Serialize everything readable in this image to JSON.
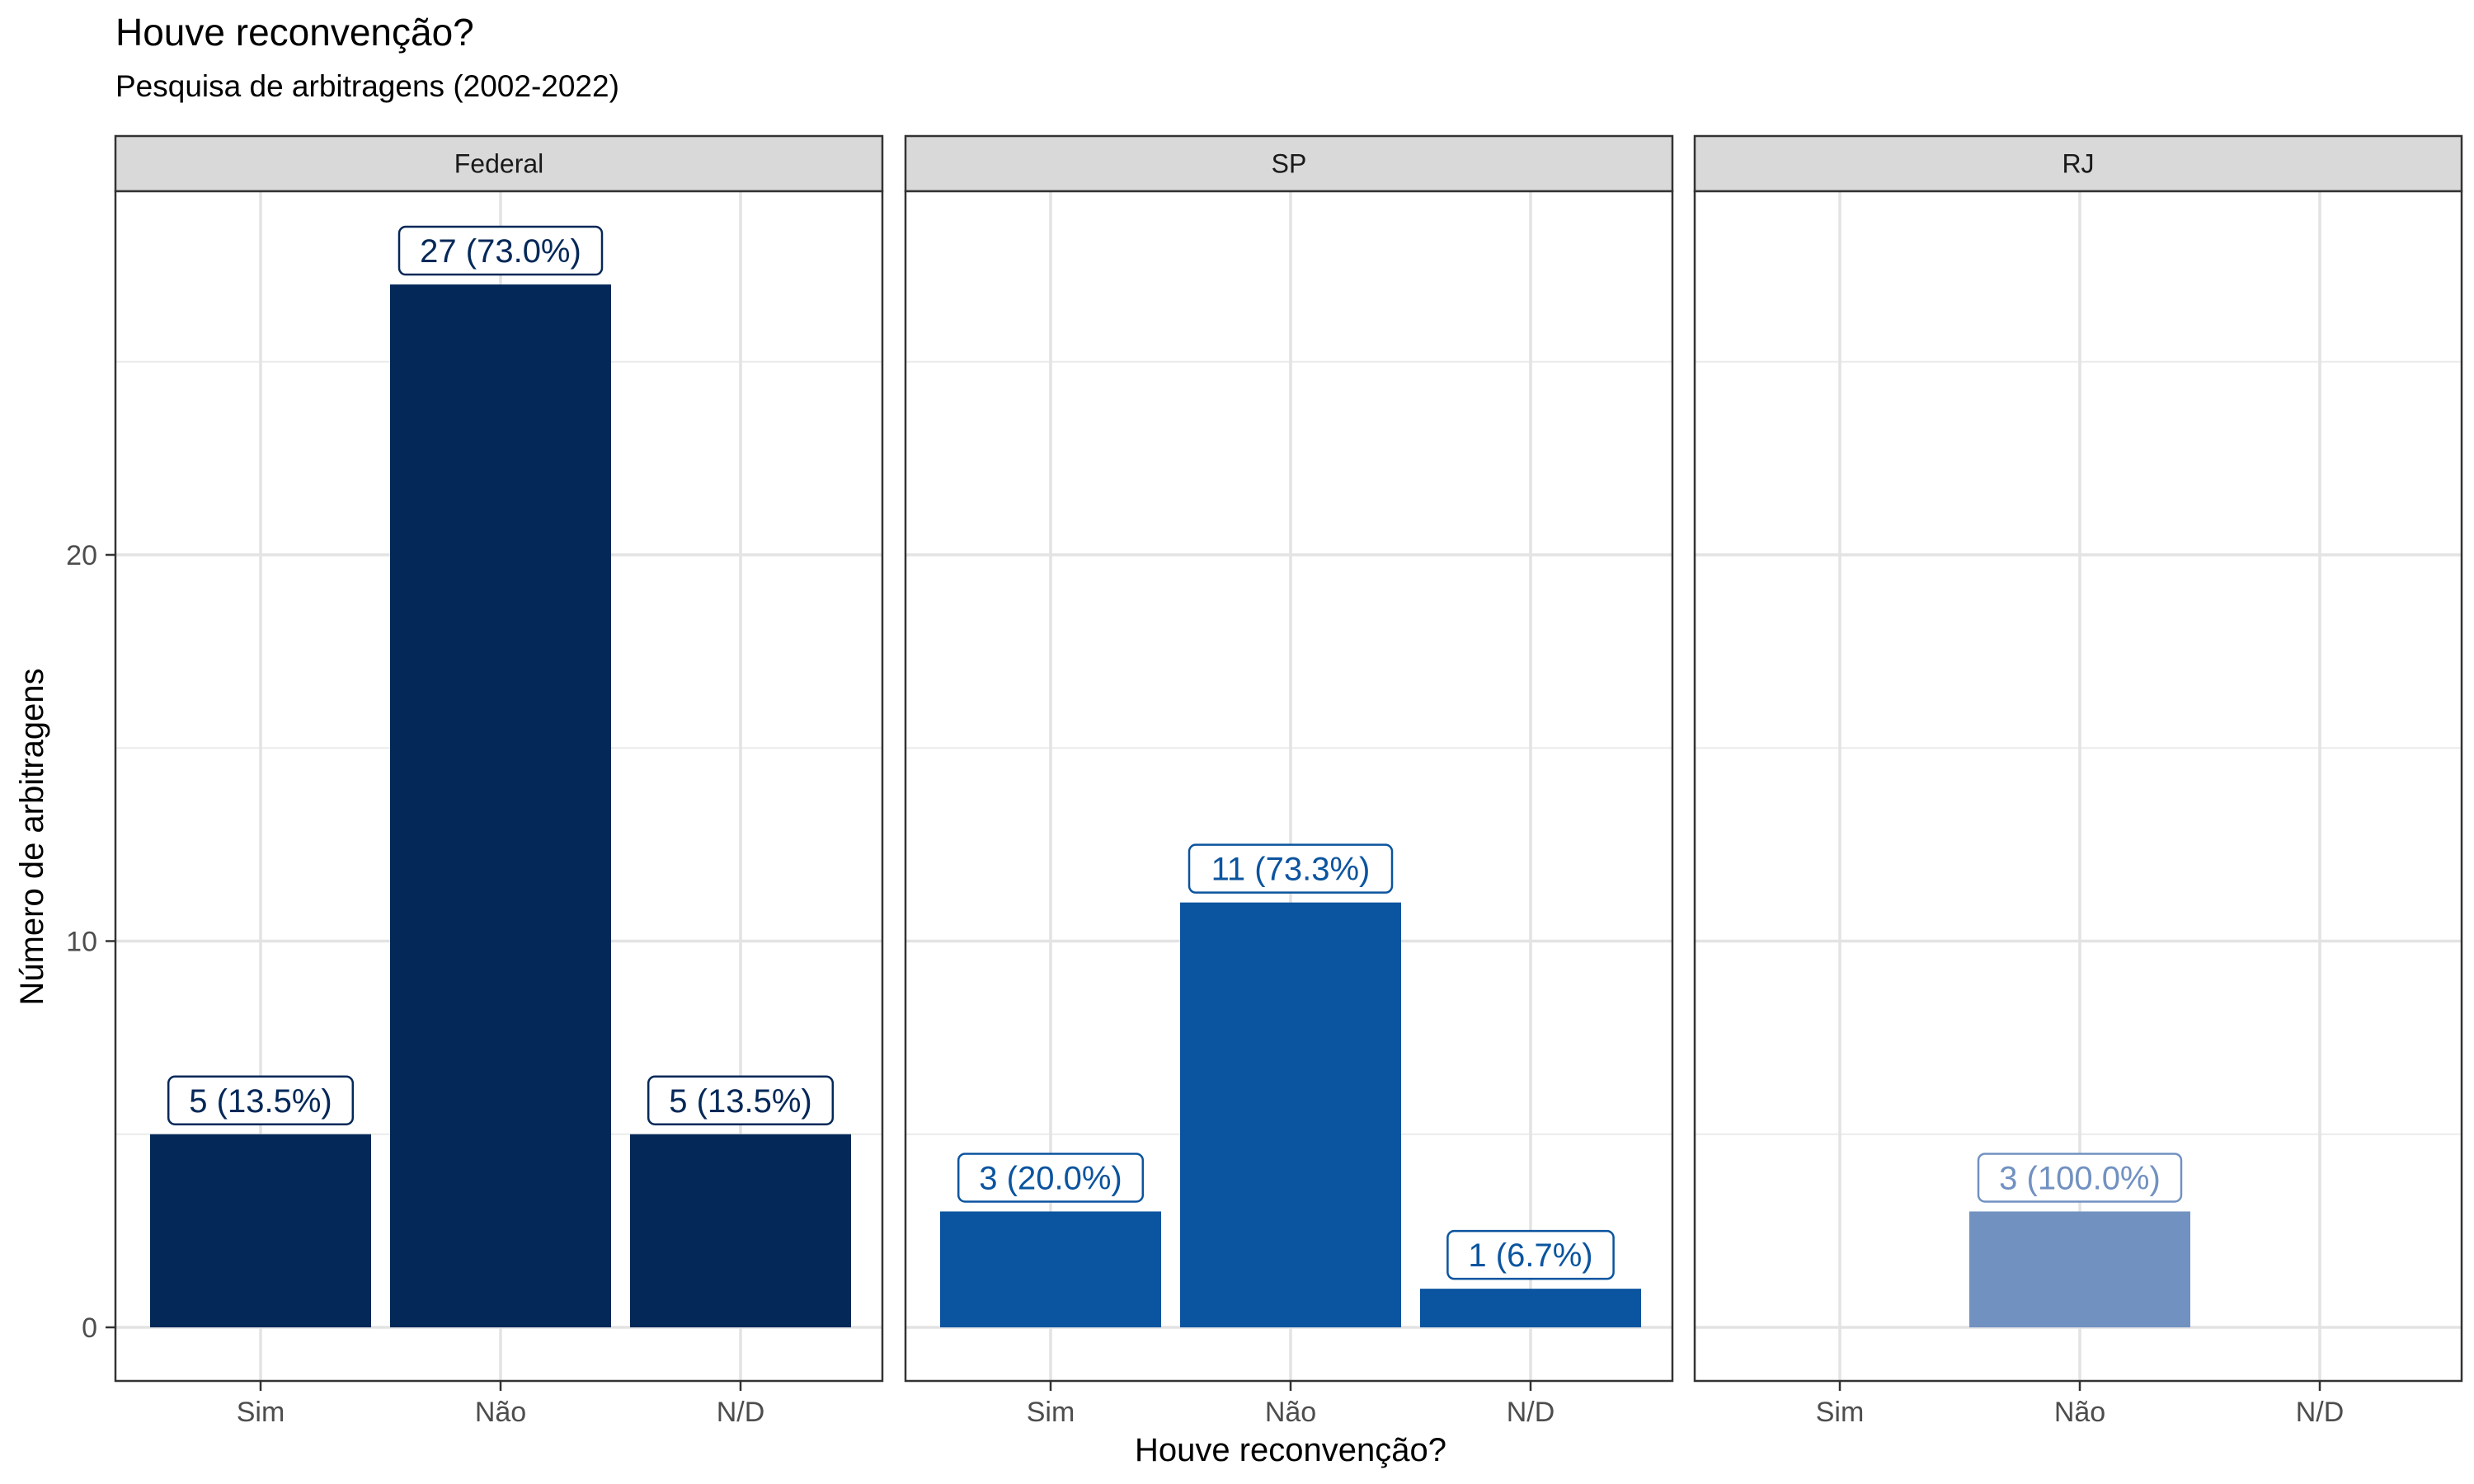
{
  "chart_data": {
    "type": "bar",
    "title": "Houve reconvenção?",
    "subtitle": "Pesquisa de arbitragens (2002-2022)",
    "xlabel": "Houve reconvenção?",
    "ylabel": "Número de arbitragens",
    "categories": [
      "Sim",
      "Não",
      "N/D"
    ],
    "ylim": [
      -1.35,
      29.0
    ],
    "yticks": [
      0,
      10,
      20
    ],
    "grid": true,
    "facets": [
      {
        "name": "Federal",
        "color": "#042858",
        "values": [
          5,
          27,
          5
        ],
        "labels": [
          "5 (13.5%)",
          "27 (73.0%)",
          "5 (13.5%)"
        ]
      },
      {
        "name": "SP",
        "color": "#0B549F",
        "values": [
          3,
          11,
          1
        ],
        "labels": [
          "3 (20.0%)",
          "11 (73.3%)",
          "1 (6.7%)"
        ]
      },
      {
        "name": "RJ",
        "color": "#7191C1",
        "values": [
          null,
          3,
          null
        ],
        "labels": [
          null,
          "3 (100.0%)",
          null
        ]
      }
    ]
  }
}
